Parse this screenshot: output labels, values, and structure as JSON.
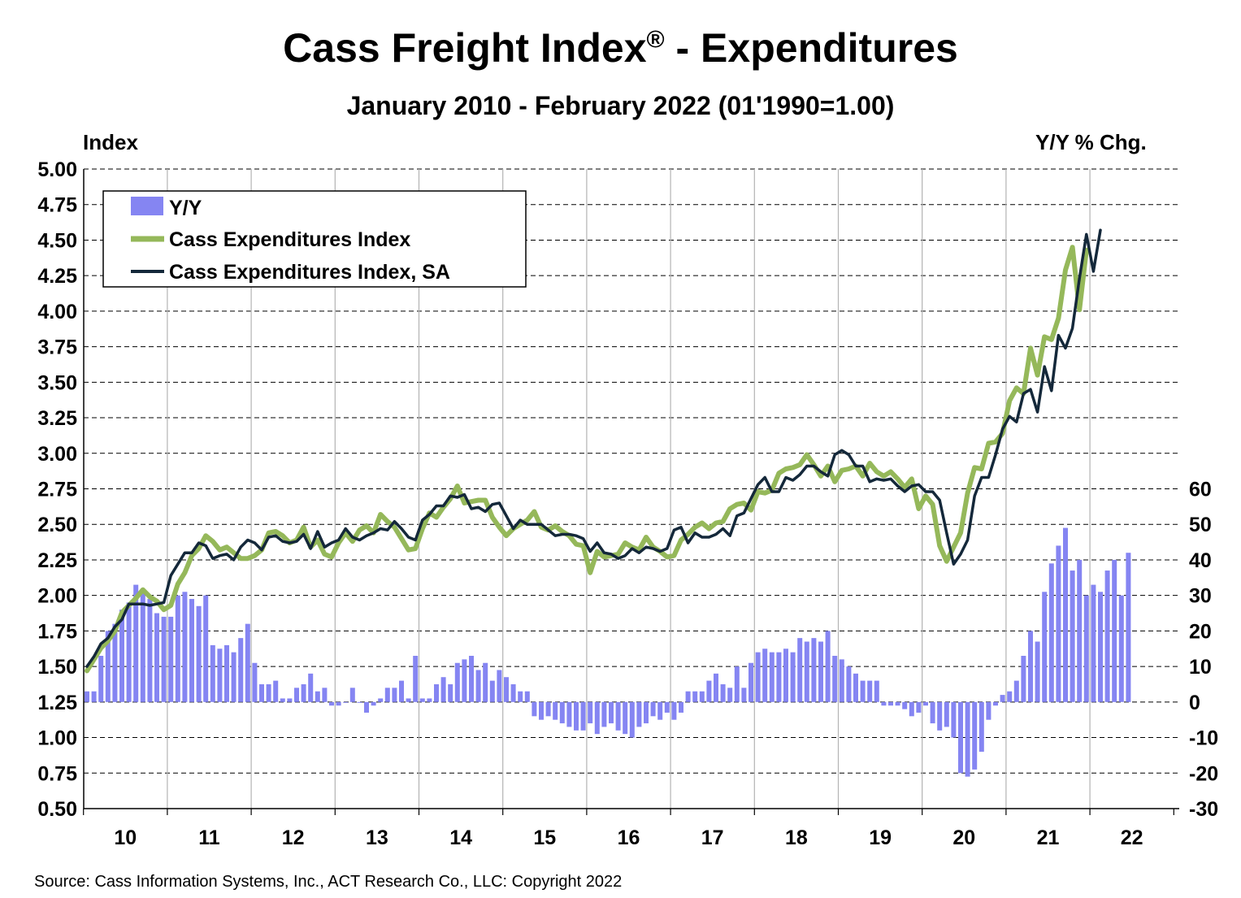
{
  "title": "Cass Freight Index",
  "title_mark": "®",
  "title_suffix": " - Expenditures",
  "subtitle": "January 2010 - February 2022 (01'1990=1.00)",
  "left_axis_title": "Index",
  "right_axis_title": "Y/Y % Chg.",
  "source": "Source: Cass Information Systems, Inc., ACT Research Co., LLC: Copyright 2022",
  "colors": {
    "yy": "#8585f2",
    "index": "#95b85a",
    "index_sa": "#14283a",
    "grid": "#555555"
  },
  "chart_data": {
    "type": "bar+line",
    "start": "2010-01",
    "y_left": {
      "min": 0.5,
      "max": 5.0,
      "step": 0.25,
      "tick_labels": [
        "0.50",
        "0.75",
        "1.00",
        "1.25",
        "1.50",
        "1.75",
        "2.00",
        "2.25",
        "2.50",
        "2.75",
        "3.00",
        "3.25",
        "3.50",
        "3.75",
        "4.00",
        "4.25",
        "4.50",
        "4.75",
        "5.00"
      ]
    },
    "y_right": {
      "min": -30,
      "max": 60,
      "step": 10,
      "tick_labels": [
        "-30",
        "-20",
        "-10",
        "0",
        "10",
        "20",
        "30",
        "40",
        "50",
        "60"
      ]
    },
    "x_labels": [
      "10",
      "11",
      "12",
      "13",
      "14",
      "15",
      "16",
      "17",
      "18",
      "19",
      "20",
      "21",
      "22"
    ],
    "grid": true,
    "legend": {
      "position": "top-left",
      "items": [
        "Y/Y",
        "Cass Expenditures Index",
        "Cass Expenditures Index, SA"
      ]
    },
    "series": [
      {
        "name": "Y/Y",
        "type": "bar",
        "values": [
          3,
          3,
          13,
          20,
          22,
          26,
          28,
          33,
          31,
          29,
          25,
          24,
          24,
          30,
          31,
          29,
          27,
          30,
          16,
          15,
          16,
          14,
          18,
          22,
          11,
          5,
          5,
          6,
          1,
          1,
          4,
          5,
          8,
          3,
          4,
          -1,
          -1,
          0,
          4,
          0,
          -3,
          -1,
          1,
          4,
          4,
          6,
          1,
          13,
          1,
          1,
          5,
          7,
          5,
          11,
          12,
          13,
          9,
          11,
          6,
          9,
          7,
          5,
          3,
          3,
          -4,
          -5,
          -4,
          -5,
          -6,
          -7,
          -8,
          -8,
          -6,
          -9,
          -7,
          -6,
          -8,
          -9,
          -10,
          -7,
          -6,
          -4,
          -5,
          -3,
          -5,
          -3,
          3,
          3,
          3,
          6,
          8,
          5,
          4,
          10,
          4,
          11,
          14,
          15,
          14,
          14,
          15,
          14,
          18,
          17,
          18,
          17,
          20,
          13,
          12,
          10,
          8,
          6,
          6,
          6,
          -1,
          -1,
          -1,
          -2,
          -4,
          -3,
          -1,
          -6,
          -8,
          -7,
          -10,
          -20,
          -21,
          -19,
          -14,
          -5,
          -1,
          2,
          3,
          6,
          13,
          20,
          17,
          31,
          39,
          44,
          49,
          37,
          40,
          30,
          33,
          31,
          37,
          40,
          30,
          42
        ]
      },
      {
        "name": "Cass Expenditures Index",
        "type": "line",
        "values": [
          1.47,
          1.55,
          1.63,
          1.68,
          1.75,
          1.88,
          1.93,
          1.98,
          2.04,
          1.99,
          1.96,
          1.9,
          1.93,
          2.08,
          2.16,
          2.28,
          2.33,
          2.42,
          2.38,
          2.32,
          2.34,
          2.3,
          2.26,
          2.26,
          2.28,
          2.32,
          2.44,
          2.45,
          2.42,
          2.37,
          2.39,
          2.48,
          2.34,
          2.39,
          2.29,
          2.27,
          2.37,
          2.44,
          2.38,
          2.46,
          2.49,
          2.44,
          2.57,
          2.52,
          2.48,
          2.4,
          2.32,
          2.33,
          2.47,
          2.58,
          2.55,
          2.62,
          2.68,
          2.77,
          2.65,
          2.66,
          2.67,
          2.67,
          2.55,
          2.48,
          2.42,
          2.47,
          2.5,
          2.53,
          2.59,
          2.48,
          2.46,
          2.49,
          2.45,
          2.42,
          2.36,
          2.35,
          2.16,
          2.31,
          2.27,
          2.28,
          2.29,
          2.37,
          2.34,
          2.32,
          2.41,
          2.34,
          2.31,
          2.27,
          2.28,
          2.39,
          2.43,
          2.48,
          2.51,
          2.47,
          2.51,
          2.52,
          2.61,
          2.64,
          2.65,
          2.6,
          2.73,
          2.72,
          2.74,
          2.86,
          2.89,
          2.9,
          2.92,
          2.99,
          2.92,
          2.84,
          2.91,
          2.8,
          2.88,
          2.89,
          2.91,
          2.84,
          2.93,
          2.87,
          2.84,
          2.87,
          2.82,
          2.76,
          2.82,
          2.61,
          2.7,
          2.64,
          2.35,
          2.24,
          2.34,
          2.44,
          2.72,
          2.9,
          2.89,
          3.07,
          3.08,
          3.14,
          3.37,
          3.46,
          3.42,
          3.74,
          3.55,
          3.82,
          3.8,
          3.95,
          4.29,
          4.45,
          4.01,
          4.43
        ]
      },
      {
        "name": "Cass Expenditures Index, SA",
        "type": "line",
        "values": [
          1.5,
          1.57,
          1.66,
          1.7,
          1.78,
          1.83,
          1.94,
          1.94,
          1.94,
          1.93,
          1.94,
          1.95,
          2.14,
          2.22,
          2.3,
          2.3,
          2.37,
          2.35,
          2.26,
          2.28,
          2.29,
          2.25,
          2.34,
          2.39,
          2.37,
          2.32,
          2.41,
          2.42,
          2.38,
          2.37,
          2.38,
          2.43,
          2.33,
          2.45,
          2.34,
          2.37,
          2.39,
          2.47,
          2.41,
          2.39,
          2.42,
          2.44,
          2.47,
          2.46,
          2.52,
          2.47,
          2.41,
          2.39,
          2.53,
          2.57,
          2.63,
          2.63,
          2.7,
          2.69,
          2.71,
          2.61,
          2.62,
          2.59,
          2.64,
          2.65,
          2.56,
          2.47,
          2.53,
          2.5,
          2.5,
          2.5,
          2.46,
          2.42,
          2.43,
          2.43,
          2.42,
          2.4,
          2.31,
          2.37,
          2.3,
          2.29,
          2.26,
          2.28,
          2.33,
          2.3,
          2.34,
          2.33,
          2.31,
          2.33,
          2.46,
          2.48,
          2.37,
          2.44,
          2.41,
          2.41,
          2.43,
          2.47,
          2.42,
          2.56,
          2.58,
          2.68,
          2.78,
          2.83,
          2.73,
          2.73,
          2.83,
          2.81,
          2.85,
          2.91,
          2.91,
          2.87,
          2.84,
          2.99,
          3.02,
          2.99,
          2.91,
          2.91,
          2.8,
          2.82,
          2.81,
          2.82,
          2.77,
          2.73,
          2.77,
          2.78,
          2.73,
          2.73,
          2.67,
          2.44,
          2.22,
          2.29,
          2.39,
          2.7,
          2.83,
          2.83,
          2.99,
          3.17,
          3.26,
          3.22,
          3.42,
          3.45,
          3.29,
          3.61,
          3.44,
          3.83,
          3.74,
          3.88,
          4.23,
          4.54,
          4.28,
          4.57
        ]
      }
    ]
  }
}
